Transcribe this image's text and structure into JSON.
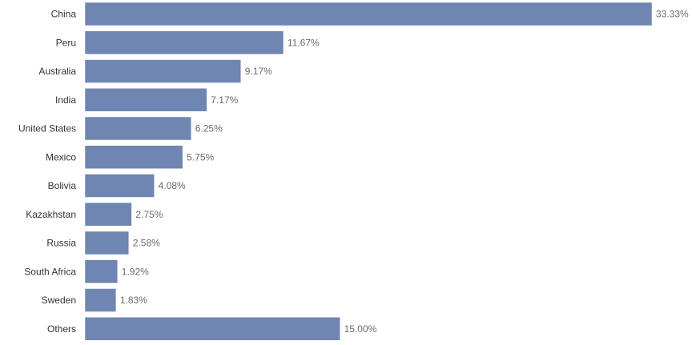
{
  "chart_data": {
    "type": "bar",
    "orientation": "horizontal",
    "categories": [
      "China",
      "Peru",
      "Australia",
      "India",
      "United States",
      "Mexico",
      "Bolivia",
      "Kazakhstan",
      "Russia",
      "South Africa",
      "Sweden",
      "Others"
    ],
    "values": [
      33.33,
      11.67,
      9.17,
      7.17,
      6.25,
      5.75,
      4.08,
      2.75,
      2.58,
      1.92,
      1.83,
      15.0
    ],
    "value_labels": [
      "33.33%",
      "11.67%",
      "9.17%",
      "7.17%",
      "6.25%",
      "5.75%",
      "4.08%",
      "2.75%",
      "2.58%",
      "1.92%",
      "1.83%",
      "15.00%"
    ],
    "value_unit": "%",
    "xlim": [
      0,
      33.33
    ],
    "grid": false,
    "legend": "none",
    "bar_color": "#6f86b3",
    "title": "",
    "xlabel": "",
    "ylabel": ""
  }
}
